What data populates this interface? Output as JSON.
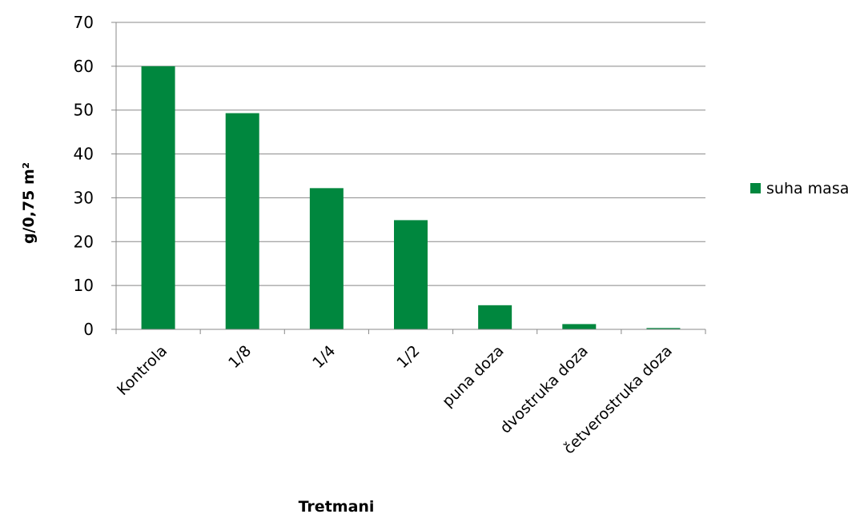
{
  "chart_data": {
    "type": "bar",
    "title": "",
    "xlabel": "Tretmani",
    "ylabel": "g/0,75 m²",
    "ylim": [
      0,
      70
    ],
    "yticks": [
      0,
      10,
      20,
      30,
      40,
      50,
      60,
      70
    ],
    "grid": true,
    "legend_position": "right",
    "categories": [
      "Kontrola",
      "1/8",
      "1/4",
      "1/2",
      "puna doza",
      "dvostruka doza",
      "četverostruka doza"
    ],
    "series": [
      {
        "name": "suha masa",
        "color": "#00873E",
        "values": [
          60,
          49.3,
          32.2,
          24.9,
          5.5,
          1.2,
          0.3
        ]
      }
    ]
  }
}
